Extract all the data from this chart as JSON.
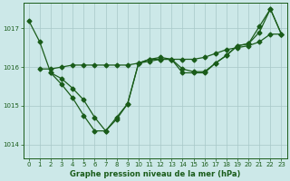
{
  "line1": {
    "x": [
      0,
      1,
      2,
      3,
      4,
      5,
      6,
      7,
      8,
      9,
      10,
      11,
      12,
      13,
      14,
      15,
      16,
      17,
      18,
      19,
      20,
      21,
      22,
      23
    ],
    "y": [
      1017.2,
      1016.65,
      1015.85,
      1015.55,
      1015.2,
      1014.75,
      1014.35,
      1014.35,
      1014.7,
      1015.05,
      1016.1,
      1016.2,
      1016.2,
      1016.2,
      1015.85,
      1015.85,
      1015.85,
      1016.1,
      1016.3,
      1016.55,
      1016.6,
      1017.05,
      1017.5,
      1016.85
    ]
  },
  "line2": {
    "x": [
      1,
      2,
      3,
      4,
      5,
      6,
      7,
      8,
      9,
      10,
      11,
      12,
      13,
      14,
      15,
      16,
      17,
      18,
      19,
      20,
      21,
      22,
      23
    ],
    "y": [
      1015.95,
      1015.95,
      1016.0,
      1016.05,
      1016.05,
      1016.05,
      1016.05,
      1016.05,
      1016.05,
      1016.1,
      1016.15,
      1016.2,
      1016.2,
      1016.2,
      1016.2,
      1016.25,
      1016.35,
      1016.45,
      1016.5,
      1016.55,
      1016.65,
      1016.85,
      1016.85
    ]
  },
  "line3": {
    "x": [
      2,
      3,
      4,
      5,
      6,
      7,
      8,
      9,
      10,
      11,
      12,
      13,
      14,
      15,
      16,
      17,
      18,
      19,
      20,
      21,
      22,
      23
    ],
    "y": [
      1015.85,
      1015.7,
      1015.45,
      1015.15,
      1014.7,
      1014.35,
      1014.65,
      1015.05,
      1016.1,
      1016.2,
      1016.25,
      1016.2,
      1015.95,
      1015.88,
      1015.88,
      1016.1,
      1016.3,
      1016.55,
      1016.6,
      1016.9,
      1017.5,
      1016.85
    ]
  },
  "bg_color": "#cce8e8",
  "line_color": "#1a5c1a",
  "grid_color": "#a8c8c8",
  "xlabel": "Graphe pression niveau de la mer (hPa)",
  "yticks": [
    1014,
    1015,
    1016,
    1017
  ],
  "xticks": [
    0,
    1,
    2,
    3,
    4,
    5,
    6,
    7,
    8,
    9,
    10,
    11,
    12,
    13,
    14,
    15,
    16,
    17,
    18,
    19,
    20,
    21,
    22,
    23
  ],
  "xlim": [
    -0.5,
    23.5
  ],
  "ylim": [
    1013.65,
    1017.65
  ]
}
